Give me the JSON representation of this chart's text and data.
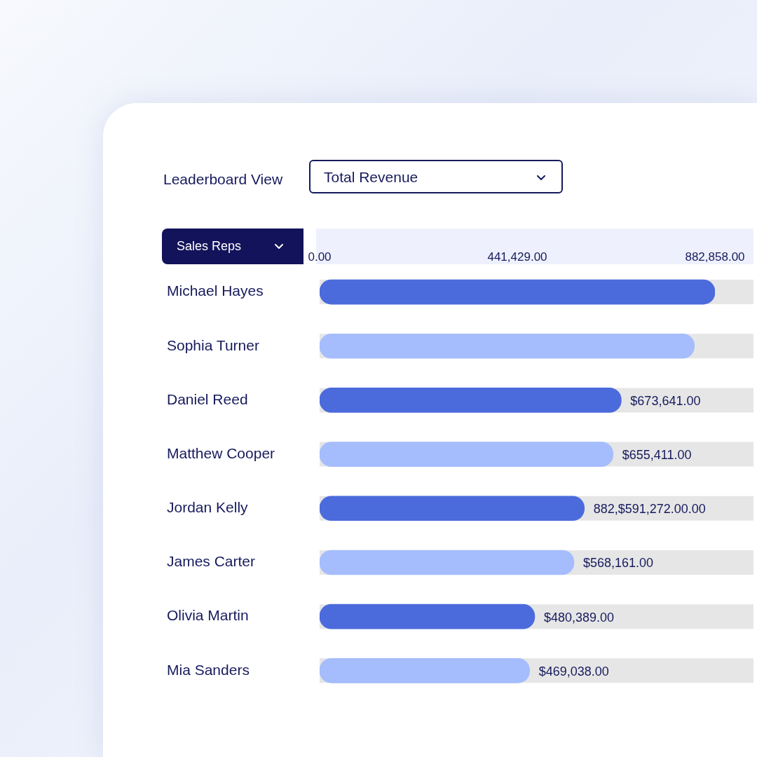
{
  "chart_data": {
    "type": "bar",
    "orientation": "horizontal",
    "title": "Leaderboard View",
    "subtitle": "Total Revenue",
    "ylabel": "Sales Reps",
    "categories": [
      "Michael Hayes",
      "Sophia Turner",
      "Daniel Reed",
      "Matthew Cooper",
      "Jordan Kelly",
      "James Carter",
      "Olivia Martin",
      "Mia Sanders"
    ],
    "values": [
      882858,
      837000,
      673641,
      655411,
      591272,
      568161,
      480389,
      469038
    ],
    "colors": [
      "#4b6bdc",
      "#a5bdfc",
      "#4b6bdc",
      "#a5bdfc",
      "#4b6bdc",
      "#a5bdfc",
      "#4b6bdc",
      "#a5bdfc"
    ],
    "value_labels": [
      null,
      null,
      "$673,641.00",
      "$655,411.00",
      "882,$591,272.00.00",
      "$568,161.00",
      "$480,389.00",
      "$469,038.00"
    ],
    "xlim": [
      0,
      882858
    ],
    "xticks": [
      {
        "value": 0,
        "label": "0.00"
      },
      {
        "value": 441429,
        "label": "441,429.00"
      },
      {
        "value": 882858,
        "label": "882,858.00"
      }
    ]
  }
}
